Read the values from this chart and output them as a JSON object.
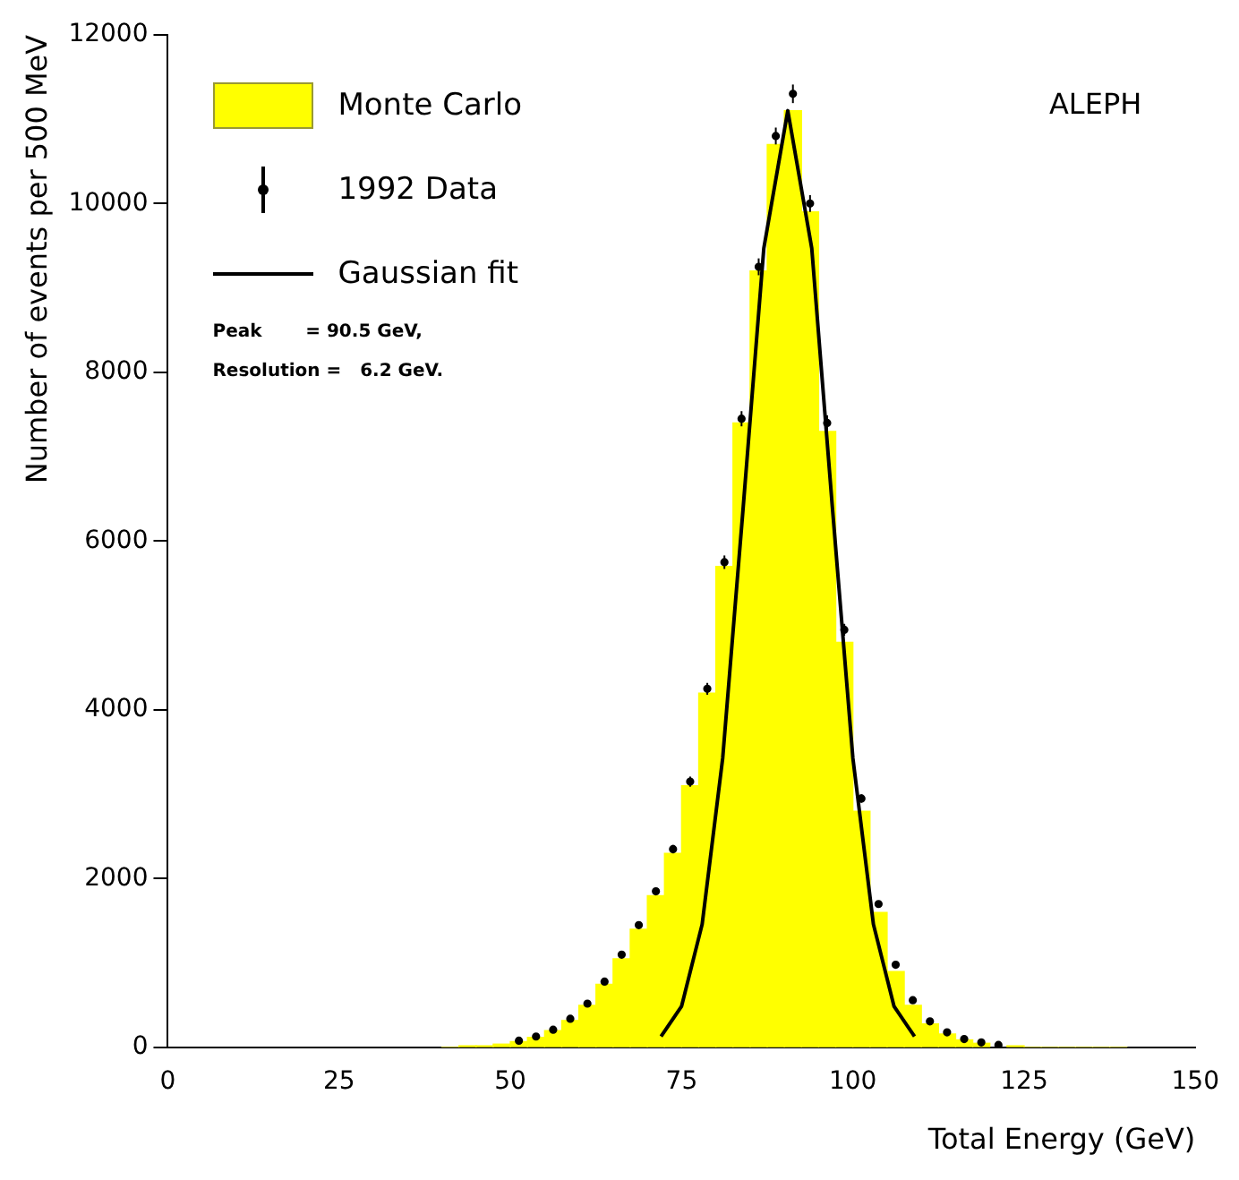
{
  "chart_data": {
    "type": "histogram",
    "xlabel": "Total Energy (GeV)",
    "ylabel": "Number of events per 500 MeV",
    "annotations": [
      "ALEPH",
      "Peak       = 90.5 GeV,",
      "Resolution =   6.2 GeV."
    ],
    "xlim": [
      0,
      150
    ],
    "xticks": [
      0,
      25,
      50,
      75,
      100,
      125,
      150
    ],
    "ylim": [
      0,
      12000
    ],
    "yticks": [
      0,
      2000,
      4000,
      6000,
      8000,
      10000,
      12000
    ],
    "grid": false,
    "legend": "top left",
    "series": [
      {
        "type": "histogram",
        "name": "Monte Carlo",
        "color": "#ffff00",
        "bins": [
          40,
          42.5,
          45,
          47.5,
          50,
          52.5,
          55,
          57.5,
          60,
          62.5,
          65,
          67.5,
          70,
          72.5,
          75,
          77.5,
          80,
          82.5,
          85,
          87.5,
          90,
          92.5,
          95,
          97.5,
          100,
          102.5,
          105,
          107.5,
          110,
          112.5,
          115,
          117.5,
          120,
          122.5,
          125,
          127.5,
          130,
          132.5,
          135,
          137.5,
          140
        ],
        "values": [
          0,
          20,
          20,
          40,
          70,
          120,
          200,
          320,
          500,
          750,
          1050,
          1400,
          1800,
          2300,
          3100,
          4200,
          5700,
          7400,
          9200,
          10700,
          11100,
          9900,
          7300,
          4800,
          2800,
          1600,
          900,
          500,
          280,
          160,
          90,
          50,
          null,
          20,
          0,
          0,
          0,
          0,
          0,
          0
        ]
      },
      {
        "type": "scatter",
        "name": "1992 Data",
        "color": "#000000",
        "marker": "circle",
        "x": [
          51.25,
          53.75,
          56.25,
          58.75,
          61.25,
          63.75,
          66.25,
          68.75,
          71.25,
          73.75,
          76.25,
          78.75,
          81.25,
          83.75,
          86.25,
          88.75,
          91.25,
          93.75,
          96.25,
          98.75,
          101.25,
          103.75,
          106.25,
          108.75,
          111.25,
          113.75,
          116.25,
          118.75,
          121.25
        ],
        "values": [
          80,
          130,
          210,
          340,
          520,
          780,
          1100,
          1450,
          1850,
          2350,
          3150,
          4250,
          5750,
          7450,
          9250,
          10800,
          11300,
          10000,
          7400,
          4950,
          2950,
          1700,
          980,
          560,
          310,
          180,
          100,
          60,
          30
        ],
        "errors": [
          null,
          null,
          null,
          null,
          null,
          null,
          40,
          40,
          40,
          50,
          60,
          70,
          80,
          90,
          100,
          100,
          110,
          100,
          90,
          70,
          50,
          40,
          30,
          null,
          null,
          null,
          null,
          null,
          null
        ]
      },
      {
        "type": "line",
        "name": "Gaussian fit",
        "color": "#000000",
        "x": [
          72,
          75,
          78,
          81,
          84,
          87,
          90.5,
          94,
          97,
          100,
          103,
          106,
          109
        ],
        "values": [
          130,
          490,
          1460,
          3430,
          6410,
          9470,
          11100,
          9470,
          6410,
          3430,
          1460,
          490,
          130
        ]
      }
    ]
  }
}
